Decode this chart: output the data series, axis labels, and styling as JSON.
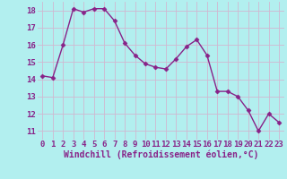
{
  "x": [
    0,
    1,
    2,
    3,
    4,
    5,
    6,
    7,
    8,
    9,
    10,
    11,
    12,
    13,
    14,
    15,
    16,
    17,
    18,
    19,
    20,
    21,
    22,
    23
  ],
  "y": [
    14.2,
    14.1,
    16.0,
    18.1,
    17.9,
    18.1,
    18.1,
    17.4,
    16.1,
    15.4,
    14.9,
    14.7,
    14.6,
    15.2,
    15.9,
    16.3,
    15.4,
    13.3,
    13.3,
    13.0,
    12.2,
    11.0,
    12.0,
    11.5
  ],
  "line_color": "#882288",
  "marker": "D",
  "marker_size": 2.5,
  "bg_color": "#b2efef",
  "grid_color": "#d0b8d0",
  "xlabel": "Windchill (Refroidissement éolien,°C)",
  "xlabel_color": "#882288",
  "xlabel_fontsize": 7,
  "tick_color": "#882288",
  "tick_fontsize": 6.5,
  "ylim": [
    10.5,
    18.5
  ],
  "yticks": [
    11,
    12,
    13,
    14,
    15,
    16,
    17,
    18
  ],
  "xticks": [
    0,
    1,
    2,
    3,
    4,
    5,
    6,
    7,
    8,
    9,
    10,
    11,
    12,
    13,
    14,
    15,
    16,
    17,
    18,
    19,
    20,
    21,
    22,
    23
  ],
  "line_width": 1.0
}
